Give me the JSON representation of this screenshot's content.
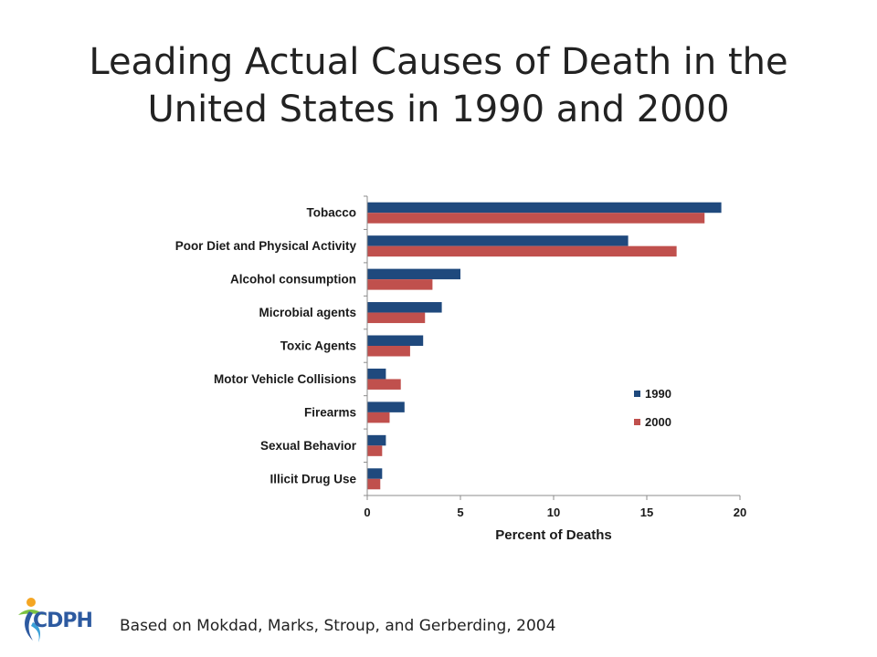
{
  "slide": {
    "title": "Leading Actual Causes of Death in the United States in 1990 and 2000",
    "footnote": "Based on Mokdad, Marks, Stroup, and Gerberding, 2004",
    "logo_text": "CDPH"
  },
  "chart_data": {
    "type": "bar",
    "orientation": "horizontal",
    "title": "",
    "xlabel": "Percent of Deaths",
    "ylabel": "",
    "xlim": [
      0,
      20
    ],
    "xticks": [
      0,
      5,
      10,
      15,
      20
    ],
    "categories": [
      "Tobacco",
      "Poor Diet and Physical Activity",
      "Alcohol consumption",
      "Microbial agents",
      "Toxic Agents",
      "Motor Vehicle Collisions",
      "Firearms",
      "Sexual Behavior",
      "Illicit Drug Use"
    ],
    "series": [
      {
        "name": "1990",
        "color": "#1f497d",
        "values": [
          19,
          14,
          5,
          4,
          3,
          1,
          2,
          1,
          0.8
        ]
      },
      {
        "name": "2000",
        "color": "#c0504d",
        "values": [
          18.1,
          16.6,
          3.5,
          3.1,
          2.3,
          1.8,
          1.2,
          0.8,
          0.7
        ]
      }
    ],
    "grid": false,
    "legend_position": "lower-right inside"
  }
}
